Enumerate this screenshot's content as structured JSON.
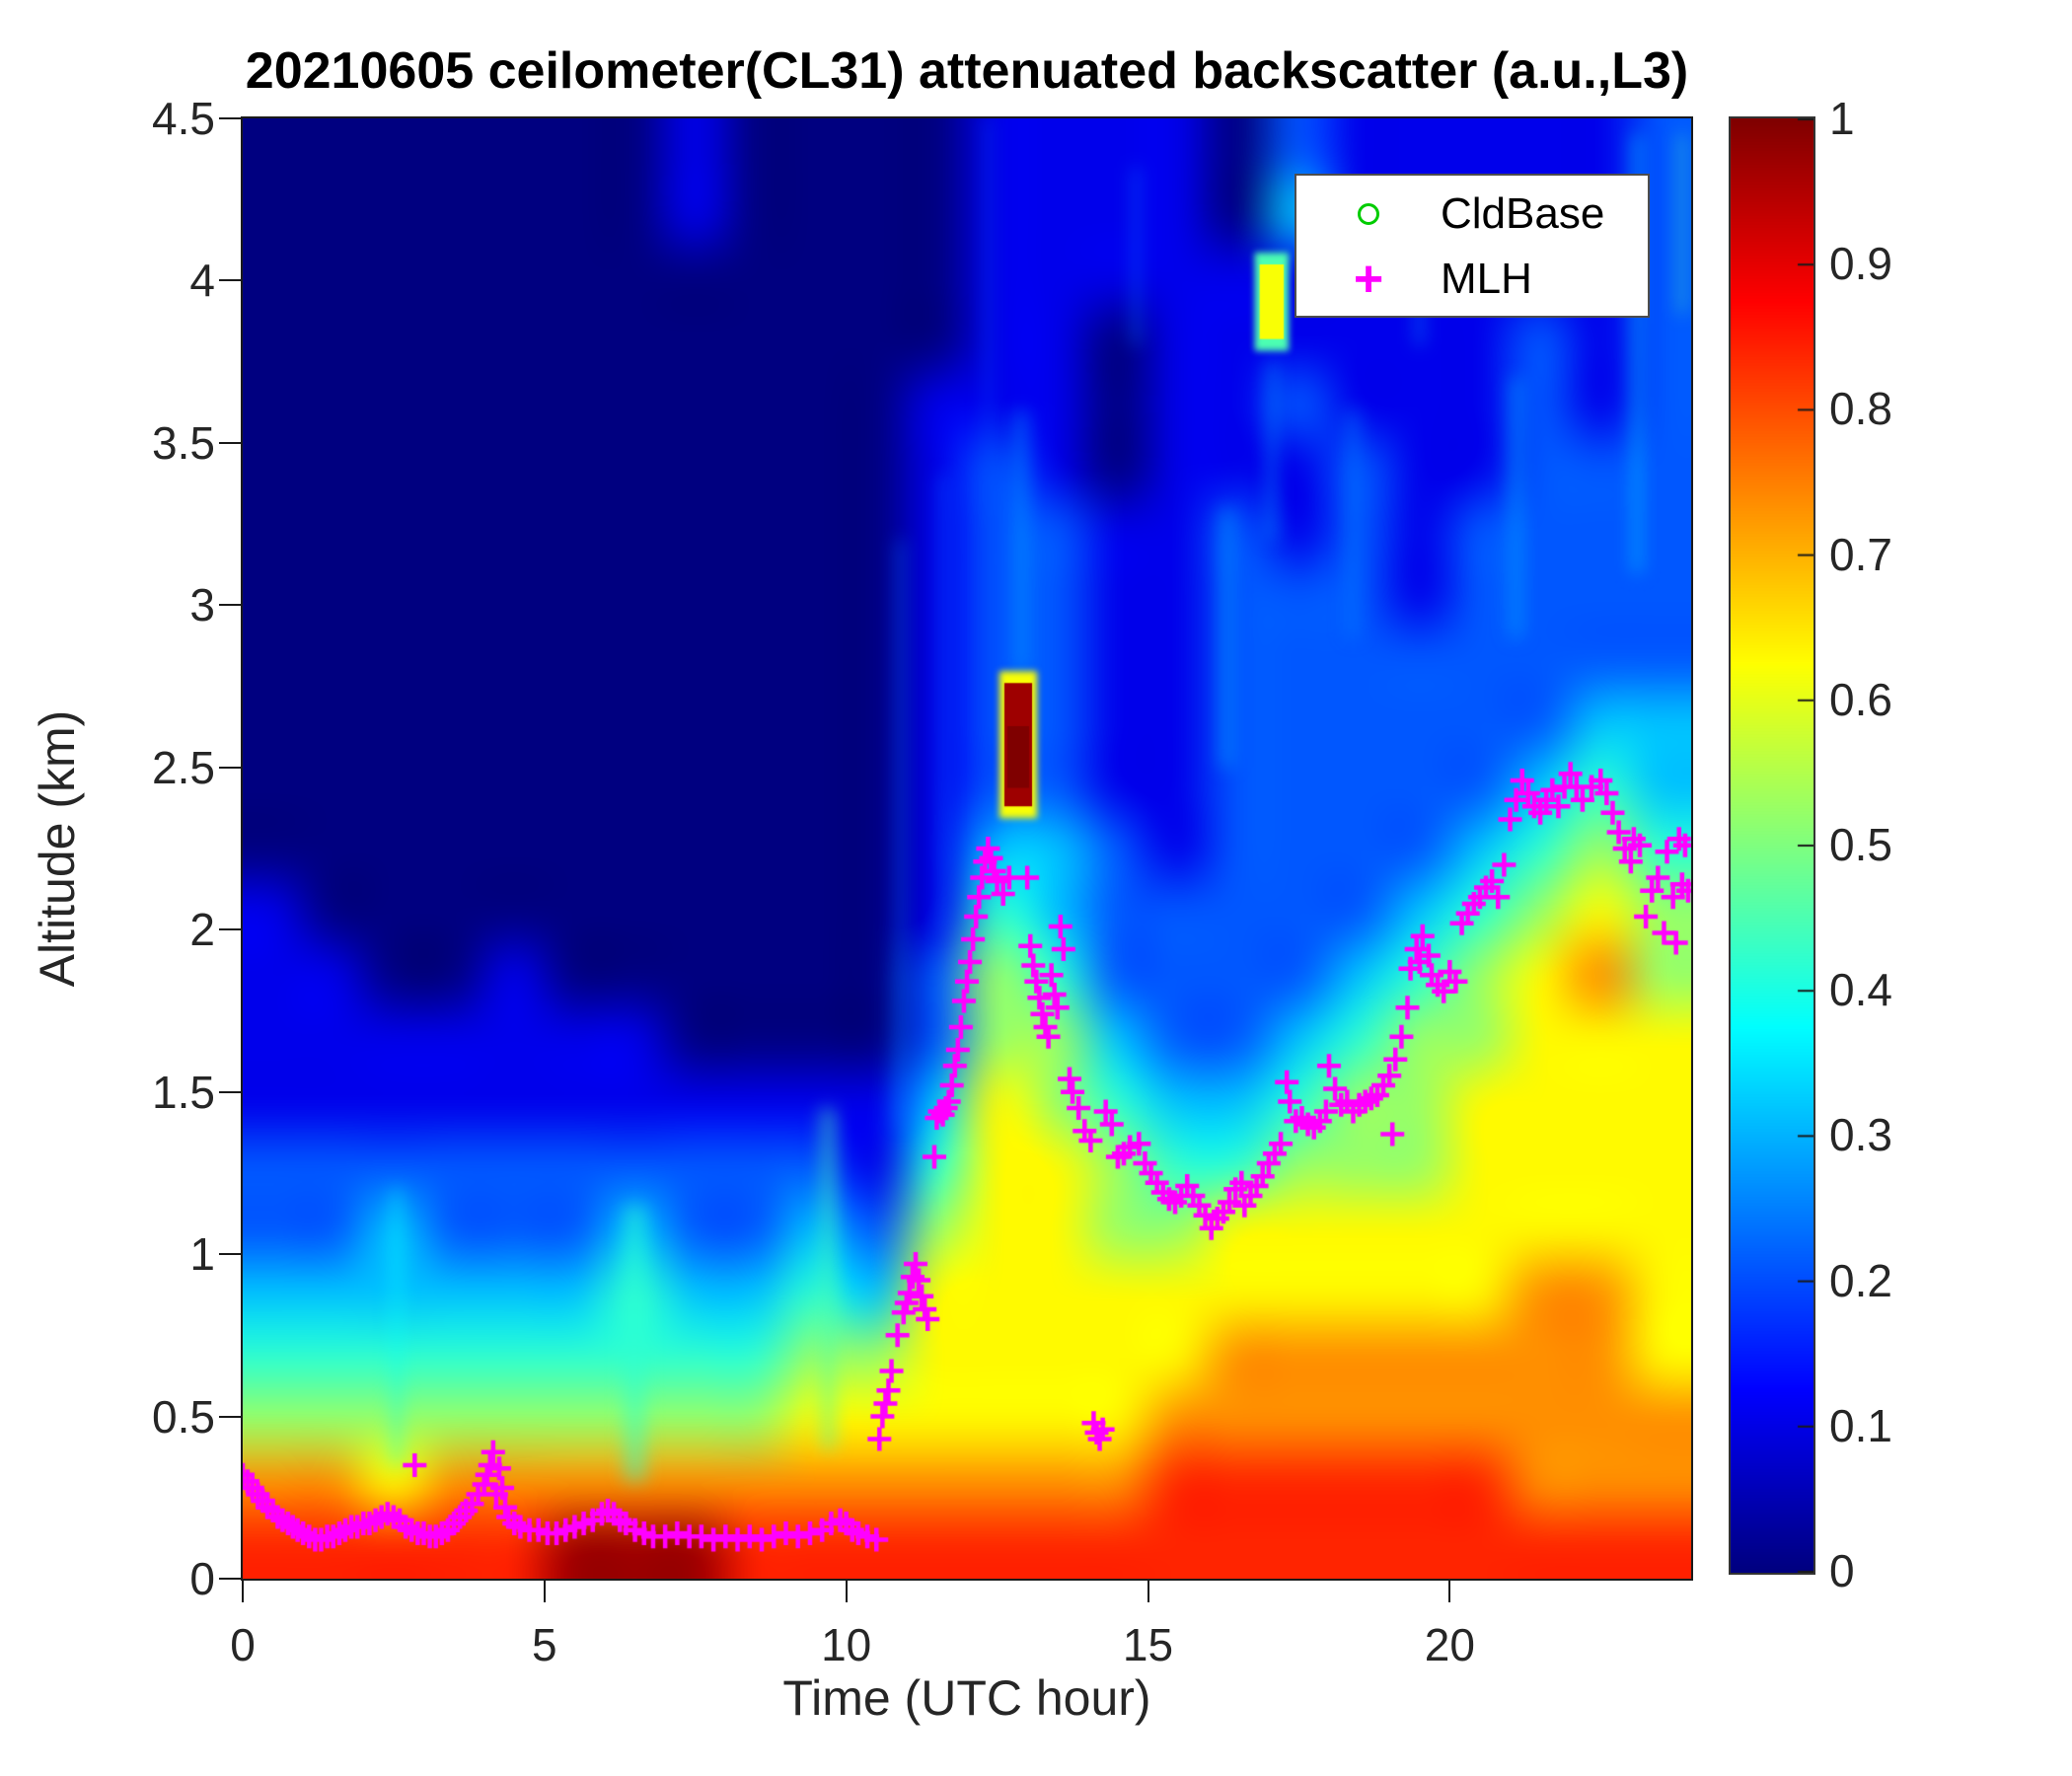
{
  "title": "20210605 ceilometer(CL31) attenuated backscatter (a.u.,L3)",
  "axes": {
    "xlabel": "Time (UTC hour)",
    "ylabel": "Altitude (km)",
    "xlim": [
      0,
      24
    ],
    "ylim": [
      0,
      4.5
    ],
    "xticks": [
      0,
      5,
      10,
      15,
      20
    ],
    "xtick_labels": [
      "0",
      "5",
      "10",
      "15",
      "20"
    ],
    "yticks": [
      0,
      0.5,
      1,
      1.5,
      2,
      2.5,
      3,
      3.5,
      4,
      4.5
    ],
    "ytick_labels": [
      "0",
      "0.5",
      "1",
      "1.5",
      "2",
      "2.5",
      "3",
      "3.5",
      "4",
      "4.5"
    ]
  },
  "legend": {
    "items": [
      {
        "label": "CldBase",
        "marker": "circle",
        "color": "#00cc00"
      },
      {
        "label": "MLH",
        "marker": "plus",
        "color": "#ff00ff"
      }
    ]
  },
  "colorbar": {
    "colormap": "jet",
    "min": 0,
    "max": 1,
    "ticks": [
      0,
      0.1,
      0.2,
      0.3,
      0.4,
      0.5,
      0.6,
      0.7,
      0.8,
      0.9,
      1
    ],
    "tick_labels": [
      "0",
      "0.1",
      "0.2",
      "0.3",
      "0.4",
      "0.5",
      "0.6",
      "0.7",
      "0.8",
      "0.9",
      "1"
    ]
  },
  "colors": {
    "mlh": "#ff00ff",
    "cldbase": "#00cc00",
    "axis": "#1a1a1a",
    "background": "#ffffff"
  },
  "chart_data": {
    "type": "heatmap",
    "title": "20210605 ceilometer(CL31) attenuated backscatter (a.u.,L3)",
    "x_unit": "UTC hour",
    "y_unit": "km",
    "value_unit": "attenuated backscatter (a.u., 0-1)",
    "grid": {
      "description": "coarse backscatter field; rows top-to-bottom cover 4.5 km down to 0 km (23 rows), columns are 1-hour bins 0-24 UTC (24 cols); digit d maps to value d*0.105",
      "digit_scale": 0.105,
      "rows_top_to_bottom": [
        "000000010000111102111112",
        "000000010000111103111112",
        "000000000000111111111112",
        "000000000000110111111212",
        "000000000001110112111212",
        "000000000001210111211222",
        "000000000001221121212222",
        "000000000001221122212222",
        "000000000001221122222222",
        "000000000001221122222233",
        "000000000001221122222343",
        "000000000001332122223454",
        "100000000001432222234565",
        "110010000002542222345675",
        "111111100002553223455666",
        "111111111113654334556666",
        "222222222214665445556666",
        "223222322325665566666666",
        "333333433436666666666776",
        "444444444556666677777776",
        "555555555666666777777777",
        "776777777777777888888777",
        "888889998888888888888888"
      ]
    },
    "features": [
      {
        "type": "cloud",
        "h_start": 12.62,
        "h_end": 13.08,
        "km_bottom": 2.38,
        "km_top": 2.76,
        "value": 0.97,
        "fringe_value": 0.62
      },
      {
        "type": "cloud",
        "h_start": 16.85,
        "h_end": 17.25,
        "km_bottom": 3.82,
        "km_top": 4.05,
        "value": 0.62,
        "fringe_value": 0.45
      }
    ],
    "streaks": [
      {
        "h": 2.55,
        "km_bottom": 0.35,
        "km_top": 1.2,
        "width_h": 0.15,
        "value": 0.38
      },
      {
        "h": 6.5,
        "km_bottom": 0.3,
        "km_top": 1.15,
        "width_h": 0.35,
        "value": 0.42
      },
      {
        "h": 9.7,
        "km_bottom": 0.4,
        "km_top": 1.45,
        "width_h": 0.25,
        "value": 0.45
      },
      {
        "h": 10.9,
        "km_bottom": 1.4,
        "km_top": 3.2,
        "width_h": 0.12,
        "value": 0.25
      },
      {
        "h": 11.6,
        "km_bottom": 2.0,
        "km_top": 3.4,
        "width_h": 0.14,
        "value": 0.22
      },
      {
        "h": 12.35,
        "km_bottom": 2.3,
        "km_top": 4.5,
        "width_h": 0.12,
        "value": 0.2
      },
      {
        "h": 12.9,
        "km_bottom": 2.8,
        "km_top": 3.6,
        "width_h": 0.16,
        "value": 0.3
      },
      {
        "h": 14.8,
        "km_bottom": 3.8,
        "km_top": 4.35,
        "width_h": 0.12,
        "value": 0.25
      },
      {
        "h": 16.3,
        "km_bottom": 2.5,
        "km_top": 3.3,
        "width_h": 0.2,
        "value": 0.3
      },
      {
        "h": 17.05,
        "km_bottom": 3.2,
        "km_top": 3.75,
        "width_h": 0.15,
        "value": 0.3
      },
      {
        "h": 18.4,
        "km_bottom": 2.9,
        "km_top": 3.6,
        "width_h": 0.2,
        "value": 0.25
      },
      {
        "h": 19.5,
        "km_bottom": 3.8,
        "km_top": 4.25,
        "width_h": 0.12,
        "value": 0.3
      },
      {
        "h": 21.1,
        "km_bottom": 2.9,
        "km_top": 3.7,
        "width_h": 0.2,
        "value": 0.3
      },
      {
        "h": 23.1,
        "km_bottom": 3.1,
        "km_top": 4.45,
        "width_h": 0.15,
        "value": 0.35
      },
      {
        "h": 23.85,
        "km_bottom": 3.9,
        "km_top": 4.45,
        "width_h": 0.12,
        "value": 0.45
      }
    ],
    "cldbase_series": [],
    "mlh_series": [
      [
        0.0,
        0.32
      ],
      [
        0.08,
        0.3
      ],
      [
        0.16,
        0.28
      ],
      [
        0.25,
        0.26
      ],
      [
        0.33,
        0.24
      ],
      [
        0.41,
        0.22
      ],
      [
        0.5,
        0.21
      ],
      [
        0.58,
        0.19
      ],
      [
        0.66,
        0.18
      ],
      [
        0.75,
        0.17
      ],
      [
        0.83,
        0.16
      ],
      [
        0.91,
        0.15
      ],
      [
        1.0,
        0.14
      ],
      [
        1.1,
        0.13
      ],
      [
        1.2,
        0.12
      ],
      [
        1.3,
        0.12
      ],
      [
        1.4,
        0.13
      ],
      [
        1.5,
        0.13
      ],
      [
        1.6,
        0.14
      ],
      [
        1.7,
        0.15
      ],
      [
        1.8,
        0.16
      ],
      [
        1.9,
        0.16
      ],
      [
        2.0,
        0.17
      ],
      [
        2.1,
        0.17
      ],
      [
        2.2,
        0.18
      ],
      [
        2.3,
        0.19
      ],
      [
        2.4,
        0.2
      ],
      [
        2.5,
        0.19
      ],
      [
        2.6,
        0.18
      ],
      [
        2.7,
        0.16
      ],
      [
        2.8,
        0.15
      ],
      [
        2.85,
        0.35
      ],
      [
        2.9,
        0.14
      ],
      [
        3.0,
        0.14
      ],
      [
        3.1,
        0.13
      ],
      [
        3.2,
        0.13
      ],
      [
        3.3,
        0.14
      ],
      [
        3.4,
        0.15
      ],
      [
        3.5,
        0.17
      ],
      [
        3.6,
        0.19
      ],
      [
        3.7,
        0.21
      ],
      [
        3.8,
        0.23
      ],
      [
        3.9,
        0.26
      ],
      [
        4.0,
        0.29
      ],
      [
        4.05,
        0.32
      ],
      [
        4.1,
        0.35
      ],
      [
        4.15,
        0.39
      ],
      [
        4.2,
        0.26
      ],
      [
        4.25,
        0.34
      ],
      [
        4.3,
        0.28
      ],
      [
        4.35,
        0.22
      ],
      [
        4.4,
        0.19
      ],
      [
        4.5,
        0.17
      ],
      [
        4.6,
        0.16
      ],
      [
        4.75,
        0.15
      ],
      [
        4.9,
        0.15
      ],
      [
        5.05,
        0.14
      ],
      [
        5.2,
        0.14
      ],
      [
        5.35,
        0.15
      ],
      [
        5.5,
        0.16
      ],
      [
        5.65,
        0.17
      ],
      [
        5.8,
        0.18
      ],
      [
        5.95,
        0.2
      ],
      [
        6.05,
        0.21
      ],
      [
        6.15,
        0.2
      ],
      [
        6.25,
        0.18
      ],
      [
        6.35,
        0.17
      ],
      [
        6.5,
        0.15
      ],
      [
        6.65,
        0.14
      ],
      [
        6.8,
        0.13
      ],
      [
        7.0,
        0.13
      ],
      [
        7.2,
        0.14
      ],
      [
        7.4,
        0.13
      ],
      [
        7.6,
        0.13
      ],
      [
        7.8,
        0.12
      ],
      [
        8.0,
        0.13
      ],
      [
        8.2,
        0.12
      ],
      [
        8.4,
        0.13
      ],
      [
        8.6,
        0.12
      ],
      [
        8.8,
        0.13
      ],
      [
        9.0,
        0.14
      ],
      [
        9.2,
        0.13
      ],
      [
        9.4,
        0.14
      ],
      [
        9.6,
        0.15
      ],
      [
        9.75,
        0.17
      ],
      [
        9.9,
        0.18
      ],
      [
        10.0,
        0.17
      ],
      [
        10.1,
        0.15
      ],
      [
        10.2,
        0.14
      ],
      [
        10.35,
        0.13
      ],
      [
        10.5,
        0.12
      ],
      [
        10.55,
        0.43
      ],
      [
        10.6,
        0.5
      ],
      [
        10.65,
        0.54
      ],
      [
        10.7,
        0.58
      ],
      [
        10.75,
        0.64
      ],
      [
        10.85,
        0.75
      ],
      [
        10.95,
        0.82
      ],
      [
        11.0,
        0.85
      ],
      [
        11.05,
        0.88
      ],
      [
        11.1,
        0.93
      ],
      [
        11.15,
        0.97
      ],
      [
        11.2,
        0.92
      ],
      [
        11.25,
        0.87
      ],
      [
        11.3,
        0.83
      ],
      [
        11.35,
        0.8
      ],
      [
        11.46,
        1.3
      ],
      [
        11.5,
        1.42
      ],
      [
        11.55,
        1.44
      ],
      [
        11.6,
        1.43
      ],
      [
        11.65,
        1.45
      ],
      [
        11.7,
        1.47
      ],
      [
        11.75,
        1.52
      ],
      [
        11.8,
        1.58
      ],
      [
        11.85,
        1.63
      ],
      [
        11.9,
        1.7
      ],
      [
        11.95,
        1.78
      ],
      [
        12.0,
        1.84
      ],
      [
        12.05,
        1.9
      ],
      [
        12.1,
        1.97
      ],
      [
        12.15,
        2.04
      ],
      [
        12.2,
        2.1
      ],
      [
        12.25,
        2.16
      ],
      [
        12.3,
        2.21
      ],
      [
        12.35,
        2.25
      ],
      [
        12.4,
        2.22
      ],
      [
        12.45,
        2.18
      ],
      [
        12.5,
        2.15
      ],
      [
        12.6,
        2.11
      ],
      [
        12.7,
        2.16
      ],
      [
        13.0,
        2.16
      ],
      [
        13.05,
        1.95
      ],
      [
        13.1,
        1.89
      ],
      [
        13.15,
        1.84
      ],
      [
        13.2,
        1.79
      ],
      [
        13.25,
        1.74
      ],
      [
        13.3,
        1.7
      ],
      [
        13.35,
        1.67
      ],
      [
        13.4,
        1.86
      ],
      [
        13.45,
        1.8
      ],
      [
        13.5,
        1.76
      ],
      [
        13.55,
        2.01
      ],
      [
        13.6,
        1.94
      ],
      [
        13.7,
        1.54
      ],
      [
        13.75,
        1.5
      ],
      [
        13.85,
        1.45
      ],
      [
        13.95,
        1.38
      ],
      [
        14.05,
        1.35
      ],
      [
        14.1,
        0.48
      ],
      [
        14.15,
        0.45
      ],
      [
        14.2,
        0.43
      ],
      [
        14.25,
        0.46
      ],
      [
        14.3,
        1.44
      ],
      [
        14.4,
        1.4
      ],
      [
        14.5,
        1.3
      ],
      [
        14.6,
        1.31
      ],
      [
        14.7,
        1.33
      ],
      [
        14.85,
        1.34
      ],
      [
        14.95,
        1.28
      ],
      [
        15.05,
        1.25
      ],
      [
        15.15,
        1.22
      ],
      [
        15.25,
        1.19
      ],
      [
        15.35,
        1.17
      ],
      [
        15.45,
        1.16
      ],
      [
        15.55,
        1.18
      ],
      [
        15.65,
        1.21
      ],
      [
        15.75,
        1.18
      ],
      [
        15.85,
        1.15
      ],
      [
        15.95,
        1.12
      ],
      [
        16.05,
        1.08
      ],
      [
        16.15,
        1.11
      ],
      [
        16.25,
        1.13
      ],
      [
        16.35,
        1.16
      ],
      [
        16.45,
        1.2
      ],
      [
        16.55,
        1.22
      ],
      [
        16.6,
        1.15
      ],
      [
        16.7,
        1.18
      ],
      [
        16.8,
        1.21
      ],
      [
        16.9,
        1.24
      ],
      [
        17.0,
        1.28
      ],
      [
        17.1,
        1.31
      ],
      [
        17.2,
        1.34
      ],
      [
        17.3,
        1.53
      ],
      [
        17.35,
        1.47
      ],
      [
        17.45,
        1.41
      ],
      [
        17.55,
        1.42
      ],
      [
        17.65,
        1.4
      ],
      [
        17.75,
        1.39
      ],
      [
        17.85,
        1.41
      ],
      [
        17.95,
        1.44
      ],
      [
        18.0,
        1.58
      ],
      [
        18.1,
        1.51
      ],
      [
        18.2,
        1.46
      ],
      [
        18.3,
        1.47
      ],
      [
        18.4,
        1.44
      ],
      [
        18.5,
        1.46
      ],
      [
        18.6,
        1.47
      ],
      [
        18.7,
        1.48
      ],
      [
        18.8,
        1.49
      ],
      [
        18.9,
        1.52
      ],
      [
        19.0,
        1.55
      ],
      [
        19.05,
        1.37
      ],
      [
        19.1,
        1.6
      ],
      [
        19.2,
        1.67
      ],
      [
        19.3,
        1.76
      ],
      [
        19.35,
        1.88
      ],
      [
        19.45,
        1.94
      ],
      [
        19.5,
        1.9
      ],
      [
        19.55,
        1.98
      ],
      [
        19.65,
        1.92
      ],
      [
        19.7,
        1.86
      ],
      [
        19.8,
        1.83
      ],
      [
        19.9,
        1.81
      ],
      [
        20.0,
        1.87
      ],
      [
        20.1,
        1.84
      ],
      [
        20.2,
        2.02
      ],
      [
        20.3,
        2.05
      ],
      [
        20.4,
        2.08
      ],
      [
        20.5,
        2.1
      ],
      [
        20.6,
        2.13
      ],
      [
        20.7,
        2.15
      ],
      [
        20.8,
        2.1
      ],
      [
        20.9,
        2.2
      ],
      [
        21.0,
        2.34
      ],
      [
        21.1,
        2.4
      ],
      [
        21.2,
        2.46
      ],
      [
        21.3,
        2.42
      ],
      [
        21.4,
        2.38
      ],
      [
        21.5,
        2.36
      ],
      [
        21.6,
        2.4
      ],
      [
        21.7,
        2.43
      ],
      [
        21.8,
        2.38
      ],
      [
        21.9,
        2.44
      ],
      [
        22.0,
        2.48
      ],
      [
        22.1,
        2.44
      ],
      [
        22.2,
        2.4
      ],
      [
        22.35,
        2.44
      ],
      [
        22.5,
        2.46
      ],
      [
        22.6,
        2.42
      ],
      [
        22.7,
        2.36
      ],
      [
        22.8,
        2.3
      ],
      [
        22.9,
        2.25
      ],
      [
        23.0,
        2.21
      ],
      [
        23.05,
        2.28
      ],
      [
        23.15,
        2.26
      ],
      [
        23.25,
        2.04
      ],
      [
        23.35,
        2.12
      ],
      [
        23.45,
        2.16
      ],
      [
        23.55,
        1.99
      ],
      [
        23.6,
        2.24
      ],
      [
        23.7,
        2.1
      ],
      [
        23.75,
        1.96
      ],
      [
        23.8,
        2.28
      ],
      [
        23.85,
        2.14
      ],
      [
        23.9,
        2.26
      ],
      [
        23.95,
        2.12
      ]
    ]
  }
}
